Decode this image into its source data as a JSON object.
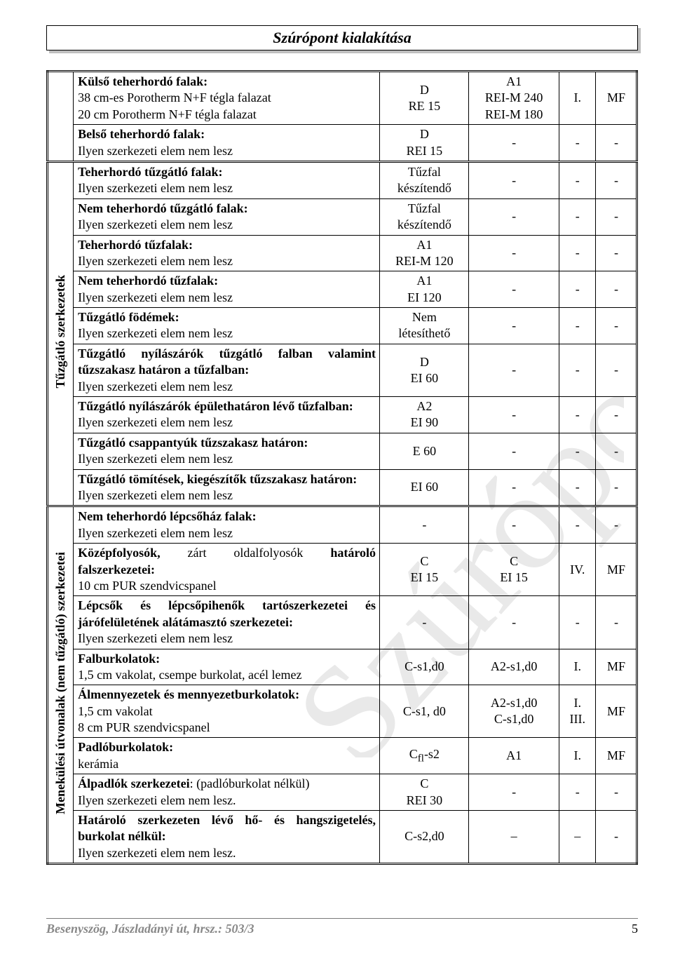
{
  "header_title": "Szúrópont kialakítása",
  "watermark_text": "Szúrópont",
  "footer_left": "Besenyszög, Jászladányi út, hrsz.: 503/3",
  "footer_page": "5",
  "colwidths": {
    "rot": 34,
    "desc": 400,
    "c2": 116,
    "c3": 118,
    "c4": 48,
    "c5": 54
  },
  "colors": {
    "text": "#000000",
    "footer_grey": "#888888",
    "watermark": "#e9e9e9",
    "shadow": "#bfbfbf"
  },
  "section_labels": {
    "tuzgatlo": "Tűzgátló szerkezetek",
    "menekulesi": "Menekülési útvonalak (nem tűzgátló) szerkezetei"
  },
  "rows": [
    {
      "sec": "top",
      "desc": "<b>Külső teherhordó falak:</b><br>38 cm-es Porotherm N+F tégla falazat<br>20 cm Porotherm N+F tégla falazat",
      "c2": "D<br>RE 15",
      "c3": "A1<br>REI-M 240<br>REI-M 180",
      "c4": "I.",
      "c5": "MF"
    },
    {
      "sec": "top",
      "desc": "<b>Belső teherhordó falak:</b><br>Ilyen szerkezeti elem nem lesz",
      "c2": "D<br>REI 15",
      "c3": "-",
      "c4": "-",
      "c5": "-"
    },
    {
      "sec": "tuz",
      "desc": "<b>Teherhordó tűzgátló falak:</b><br>Ilyen szerkezeti elem nem lesz",
      "c2": "Tűzfal<br>készítendő",
      "c3": "-",
      "c4": "-",
      "c5": "-"
    },
    {
      "sec": "tuz",
      "desc": "<b>Nem teherhordó tűzgátló falak:</b><br>Ilyen szerkezeti elem nem lesz",
      "c2": "Tűzfal<br>készítendő",
      "c3": "-",
      "c4": "-",
      "c5": "-"
    },
    {
      "sec": "tuz",
      "desc": "<b>Teherhordó tűzfalak:</b><br>Ilyen szerkezeti elem nem lesz",
      "c2": "A1<br>REI-M 120",
      "c3": "-",
      "c4": "-",
      "c5": "-"
    },
    {
      "sec": "tuz",
      "desc": "<b>Nem teherhordó tűzfalak:</b><br>Ilyen szerkezeti elem nem lesz",
      "c2": "A1<br>EI 120",
      "c3": "-",
      "c4": "-",
      "c5": "-"
    },
    {
      "sec": "tuz",
      "desc": "<b>Tűzgátló födémek:</b><br>Ilyen szerkezeti elem nem lesz",
      "c2": "Nem<br>létesíthető",
      "c3": "-",
      "c4": "-",
      "c5": "-"
    },
    {
      "sec": "tuz",
      "desc_just": true,
      "desc": "<b>Tűzgátló nyílászárók tűzgátló falban valamint tűzszakasz határon a tűzfalban:</b><br><span style='text-align:left;display:block'>Ilyen szerkezeti elem nem lesz</span>",
      "c2": "D<br>EI 60",
      "c3": "-",
      "c4": "-",
      "c5": "-"
    },
    {
      "sec": "tuz",
      "desc_just": true,
      "desc": "<b>Tűzgátló nyílászárók épülethatáron lévő tűzfalban:</b><br><span style='text-align:left;display:block'>Ilyen szerkezeti elem nem lesz</span>",
      "c2": "A2<br>EI 90",
      "c3": "-",
      "c4": "-",
      "c5": "-"
    },
    {
      "sec": "tuz",
      "desc": "<b>Tűzgátló csappantyúk tűzszakasz határon:</b><br>Ilyen szerkezeti elem nem lesz",
      "c2": "E 60",
      "c3": "-",
      "c4": "-",
      "c5": "-"
    },
    {
      "sec": "tuz",
      "desc": "<b>Tűzgátló tömítések, kiegészítők tűzszakasz határon:</b><br>Ilyen szerkezeti elem nem lesz",
      "c2": "EI 60",
      "c3": "-",
      "c4": "-",
      "c5": "-"
    },
    {
      "sec": "men",
      "desc": "<b>Nem teherhordó lépcsőház falak:</b><br>Ilyen szerkezeti elem nem lesz",
      "c2": "-",
      "c3": "-",
      "c4": "-",
      "c5": "-"
    },
    {
      "sec": "men",
      "desc_just": true,
      "desc": "<b>Középfolyosók,</b> zárt oldalfolyosók <b>határoló falszerkezetei:</b><br><span style='text-align:left;display:block'>10 cm PUR szendvicspanel</span>",
      "c2": "C<br>EI 15",
      "c3": "C<br>EI 15",
      "c4": "IV.",
      "c5": "MF"
    },
    {
      "sec": "men",
      "desc_just": true,
      "desc": "<b>Lépcsők és lépcsőpihenők tartószerkezetei és járófelületének alátámasztó szerkezetei:</b><br><span style='text-align:left;display:block'>Ilyen szerkezeti elem nem lesz</span>",
      "c2": "-",
      "c3": "-",
      "c4": "-",
      "c5": "-"
    },
    {
      "sec": "men",
      "desc": "<b>Falburkolatok:</b><br>1,5 cm vakolat, csempe burkolat, acél lemez",
      "c2": "C-s1,d0",
      "c3": "A2-s1,d0",
      "c4": "I.",
      "c5": "MF"
    },
    {
      "sec": "men",
      "desc": "<b>Álmennyezetek és mennyezetburkolatok:</b><br>1,5 cm vakolat<br>8 cm PUR szendvicspanel",
      "c2": "C-s1, d0",
      "c3": "A2-s1,d0<br>C-s1,d0",
      "c4": "I.<br>III.",
      "c5": "MF"
    },
    {
      "sec": "men",
      "desc": "<b>Padlóburkolatok:</b><br>kerámia",
      "c2": "C<sub>fl</sub>-s2",
      "c3": "A1",
      "c4": "I.",
      "c5": "MF"
    },
    {
      "sec": "men",
      "desc": "<b>Álpadlók szerkezetei</b>: (padlóburkolat nélkül)<br>Ilyen szerkezeti elem nem lesz.",
      "c2": "C<br>REI 30",
      "c3": "-",
      "c4": "-",
      "c5": "-"
    },
    {
      "sec": "men",
      "desc_just": true,
      "desc": "<b>Határoló szerkezeten lévő hő- és hangszigetelés, burkolat nélkül:</b><br><span style='text-align:left;display:block'>Ilyen szerkezeti elem nem lesz.</span>",
      "c2": "C-s2,d0",
      "c3": "–",
      "c4": "–",
      "c5": "-"
    }
  ]
}
